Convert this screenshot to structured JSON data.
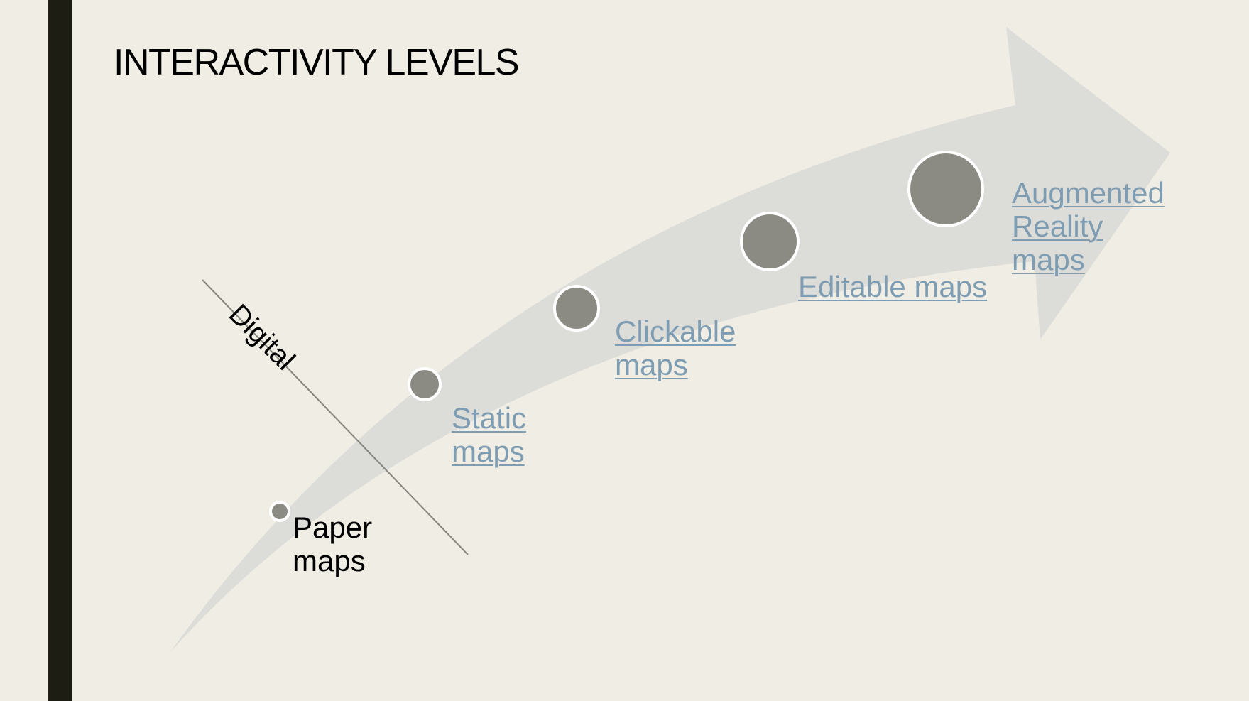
{
  "slide": {
    "title": "INTERACTIVITY LEVELS",
    "divider_label": "Digital",
    "arrow_color": "#dcdcd8",
    "dot_color": "#8b8b83",
    "link_color": "#7f9db2",
    "levels": [
      {
        "name": "level-paper-maps",
        "lines": [
          "Paper",
          "maps"
        ],
        "link": false
      },
      {
        "name": "level-static-maps",
        "lines": [
          "Static",
          "maps"
        ],
        "link": true
      },
      {
        "name": "level-clickable-maps",
        "lines": [
          "Clickable",
          "maps"
        ],
        "link": true
      },
      {
        "name": "level-editable-maps",
        "lines": [
          "Editable maps"
        ],
        "link": true
      },
      {
        "name": "level-augmented-reality-maps",
        "lines": [
          "Augmented",
          "Reality",
          "maps"
        ],
        "link": true
      }
    ]
  }
}
